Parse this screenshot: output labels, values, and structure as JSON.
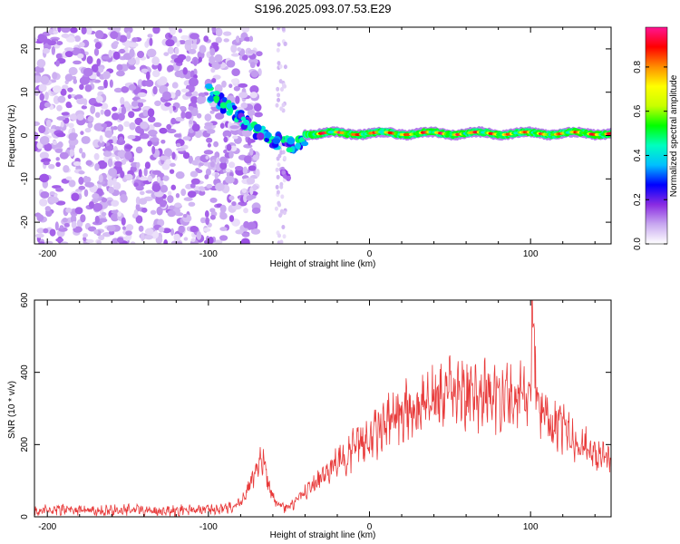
{
  "title": "S196.2025.093.07.53.E29",
  "chart_data": [
    {
      "type": "heatmap",
      "panel": "spectrogram",
      "xlabel": "Height of straight line (km)",
      "ylabel": "Frequency (Hz)",
      "xlim": [
        -208,
        150
      ],
      "ylim": [
        -25,
        25
      ],
      "xticks": [
        -200,
        -100,
        0,
        100
      ],
      "yticks": [
        -20,
        -10,
        0,
        10,
        20
      ],
      "colorbar": {
        "label": "Normalized spectral amplitude",
        "range": [
          0.0,
          0.98
        ],
        "ticks": [
          0.0,
          0.2,
          0.4,
          0.6,
          0.8
        ],
        "colors": [
          "#ffffff",
          "#c8a8f0",
          "#8a2be2",
          "#0000ff",
          "#00bfff",
          "#00ffbf",
          "#00ff00",
          "#c8ff00",
          "#ffff00",
          "#ff8c00",
          "#ff0000",
          "#ff1493"
        ]
      },
      "regions": [
        {
          "name": "noise",
          "x_range": [
            -208,
            -78
          ],
          "freq_range": [
            -25,
            25
          ],
          "amplitude": 0.05
        },
        {
          "name": "descent",
          "points": [
            [
              -100,
              10
            ],
            [
              -90,
              7
            ],
            [
              -80,
              4
            ],
            [
              -70,
              1
            ],
            [
              -60,
              -1
            ],
            [
              -50,
              -2
            ],
            [
              -40,
              -2
            ]
          ],
          "amplitude": 0.3
        },
        {
          "name": "branch",
          "points": [
            [
              -55,
              -8
            ],
            [
              -50,
              -10
            ]
          ],
          "amplitude": 0.12
        },
        {
          "name": "ridge",
          "x_range": [
            -40,
            150
          ],
          "freq": 0.5,
          "amplitude": 0.9
        }
      ]
    },
    {
      "type": "line",
      "panel": "snr",
      "xlabel": "Height of straight line (km)",
      "ylabel": "SNR (10 * v/v)",
      "xlim": [
        -208,
        150
      ],
      "ylim": [
        0,
        600
      ],
      "xticks": [
        -200,
        -100,
        0,
        100
      ],
      "yticks": [
        0,
        200,
        400,
        600
      ],
      "color": "#e83a3a",
      "series": [
        {
          "name": "SNR",
          "x": [
            -208,
            -190,
            -170,
            -150,
            -130,
            -110,
            -90,
            -80,
            -72,
            -66,
            -62,
            -58,
            -52,
            -46,
            -40,
            -30,
            -20,
            -10,
            0,
            10,
            20,
            30,
            40,
            50,
            60,
            70,
            80,
            90,
            95,
            100,
            101,
            105,
            110,
            120,
            130,
            140,
            150
          ],
          "y": [
            18,
            20,
            18,
            20,
            18,
            20,
            22,
            40,
            110,
            170,
            80,
            40,
            25,
            40,
            70,
            110,
            150,
            190,
            225,
            260,
            290,
            315,
            330,
            345,
            350,
            350,
            345,
            340,
            340,
            330,
            600,
            320,
            270,
            250,
            210,
            175,
            160
          ]
        }
      ]
    }
  ]
}
